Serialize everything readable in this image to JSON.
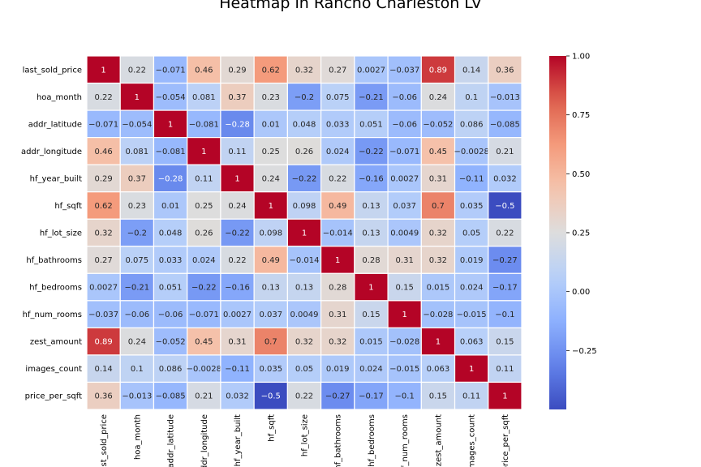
{
  "chart_data": {
    "type": "heatmap",
    "title": "Heatmap in Rancho Charleston LV",
    "row_labels": [
      "last_sold_price",
      "hoa_month",
      "addr_latitude",
      "addr_longitude",
      "hf_year_built",
      "hf_sqft",
      "hf_lot_size",
      "hf_bathrooms",
      "hf_bedrooms",
      "hf_num_rooms",
      "zest_amount",
      "images_count",
      "price_per_sqft"
    ],
    "col_labels": [
      "last_sold_price",
      "hoa_month",
      "addr_latitude",
      "addr_longitude",
      "hf_year_built",
      "hf_sqft",
      "hf_lot_size",
      "hf_bathrooms",
      "hf_bedrooms",
      "hf_num_rooms",
      "zest_amount",
      "images_count",
      "price_per_sqft"
    ],
    "values": [
      [
        1,
        0.22,
        -0.071,
        0.46,
        0.29,
        0.62,
        0.32,
        0.27,
        0.0027,
        -0.037,
        0.89,
        0.14,
        0.36
      ],
      [
        0.22,
        1,
        -0.054,
        0.081,
        0.37,
        0.23,
        -0.2,
        0.075,
        -0.21,
        -0.06,
        0.24,
        0.1,
        -0.013
      ],
      [
        -0.071,
        -0.054,
        1,
        -0.081,
        -0.28,
        0.01,
        0.048,
        0.033,
        0.051,
        -0.06,
        -0.052,
        0.086,
        -0.085
      ],
      [
        0.46,
        0.081,
        -0.081,
        1,
        0.11,
        0.25,
        0.26,
        0.024,
        -0.22,
        -0.071,
        0.45,
        -0.0028,
        0.21
      ],
      [
        0.29,
        0.37,
        -0.28,
        0.11,
        1,
        0.24,
        -0.22,
        0.22,
        -0.16,
        0.0027,
        0.31,
        -0.11,
        0.032
      ],
      [
        0.62,
        0.23,
        0.01,
        0.25,
        0.24,
        1,
        0.098,
        0.49,
        0.13,
        0.037,
        0.7,
        0.035,
        -0.5
      ],
      [
        0.32,
        -0.2,
        0.048,
        0.26,
        -0.22,
        0.098,
        1,
        -0.014,
        0.13,
        0.0049,
        0.32,
        0.05,
        0.22
      ],
      [
        0.27,
        0.075,
        0.033,
        0.024,
        0.22,
        0.49,
        -0.014,
        1,
        0.28,
        0.31,
        0.32,
        0.019,
        -0.27
      ],
      [
        0.0027,
        -0.21,
        0.051,
        -0.22,
        -0.16,
        0.13,
        0.13,
        0.28,
        1,
        0.15,
        0.015,
        0.024,
        -0.17
      ],
      [
        -0.037,
        -0.06,
        -0.06,
        -0.071,
        0.0027,
        0.037,
        0.0049,
        0.31,
        0.15,
        1,
        -0.028,
        -0.015,
        -0.1
      ],
      [
        0.89,
        0.24,
        -0.052,
        0.45,
        0.31,
        0.7,
        0.32,
        0.32,
        0.015,
        -0.028,
        1,
        0.063,
        0.15
      ],
      [
        0.14,
        0.1,
        0.086,
        -0.0028,
        -0.11,
        0.035,
        0.05,
        0.019,
        0.024,
        -0.015,
        0.063,
        1,
        0.11
      ],
      [
        0.36,
        -0.013,
        -0.085,
        0.21,
        0.032,
        -0.5,
        0.22,
        -0.27,
        -0.17,
        -0.1,
        0.15,
        0.11,
        1
      ]
    ],
    "colormap": "coolwarm",
    "vmin": -0.5,
    "vmax": 1,
    "colorbar_ticks": [
      1.0,
      0.75,
      0.5,
      0.25,
      0.0,
      -0.25
    ],
    "colorbar_tick_labels": [
      "1.00",
      "0.75",
      "0.50",
      "0.25",
      "0.00",
      "−0.25"
    ],
    "annotated": true,
    "cell_border_color": "#ffffff"
  }
}
